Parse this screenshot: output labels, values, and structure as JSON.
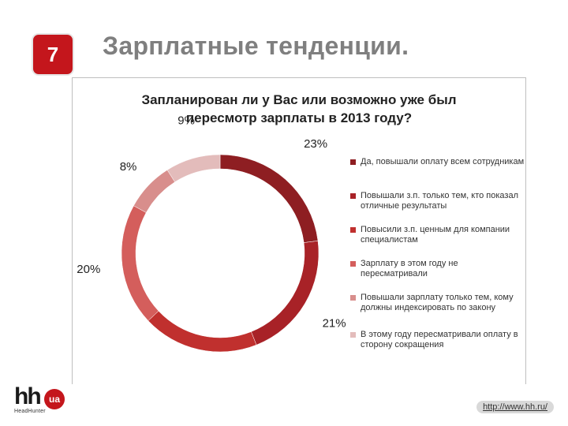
{
  "slide": {
    "number": "7",
    "title": "Зарплатные тенденции."
  },
  "footer": {
    "logo_mark": "hh",
    "logo_badge": "ua",
    "logo_sub": "HeadHunter",
    "url": "http://www.hh.ru/"
  },
  "chart_data": {
    "type": "pie",
    "donut": true,
    "title_lines": [
      "Запланирован ли у Вас или возможно уже был",
      "пересмотр зарплаты  в 2013 году?"
    ],
    "legend_position": "right",
    "slices": [
      {
        "label": "Да, повышали оплату всем сотрудникам",
        "value": 23,
        "value_label": "23%",
        "color": "#8e1e22"
      },
      {
        "label": "Повышали з.п. только тем, кто показал отличные результаты",
        "value": 21,
        "value_label": "21%",
        "color": "#a82227"
      },
      {
        "label": "Повысили з.п. ценным для компании специалистам",
        "value": 19,
        "value_label": "19%",
        "color": "#c0302e"
      },
      {
        "label": "Зарплату в этом году не пересматривали",
        "value": 20,
        "value_label": "20%",
        "color": "#d45e5c"
      },
      {
        "label": "Повышали зарплату только тем, кому должны индексировать по закону",
        "value": 8,
        "value_label": "8%",
        "color": "#d88e8c"
      },
      {
        "label": "В этому году пересматривали оплату в сторону сокращения",
        "value": 9,
        "value_label": "9%",
        "color": "#e3bcbb"
      }
    ]
  }
}
